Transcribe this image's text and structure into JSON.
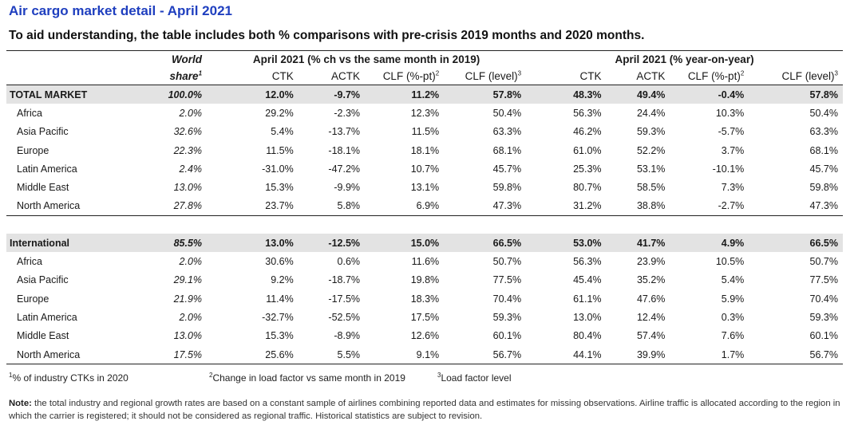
{
  "title": "Air cargo market detail - April 2021",
  "subtitle": "To aid understanding, the table includes both % comparisons with pre-crisis 2019 months and 2020 months.",
  "headers": {
    "world": "World",
    "share": "share",
    "share_sup": "1",
    "group1": "April 2021 (% ch vs the same month in 2019)",
    "group2": "April 2021 (% year-on-year)",
    "ctk": "CTK",
    "actk": "ACTK",
    "clf_pt": "CLF (%-pt)",
    "clf_pt_sup": "2",
    "clf_level": "CLF (level)",
    "clf_level_sup": "3"
  },
  "sections": [
    {
      "total": [
        "TOTAL MARKET",
        "100.0%",
        "12.0%",
        "-9.7%",
        "11.2%",
        "57.8%",
        "48.3%",
        "49.4%",
        "-0.4%",
        "57.8%"
      ],
      "rows": [
        [
          "Africa",
          "2.0%",
          "29.2%",
          "-2.3%",
          "12.3%",
          "50.4%",
          "56.3%",
          "24.4%",
          "10.3%",
          "50.4%"
        ],
        [
          "Asia Pacific",
          "32.6%",
          "5.4%",
          "-13.7%",
          "11.5%",
          "63.3%",
          "46.2%",
          "59.3%",
          "-5.7%",
          "63.3%"
        ],
        [
          "Europe",
          "22.3%",
          "11.5%",
          "-18.1%",
          "18.1%",
          "68.1%",
          "61.0%",
          "52.2%",
          "3.7%",
          "68.1%"
        ],
        [
          "Latin America",
          "2.4%",
          "-31.0%",
          "-47.2%",
          "10.7%",
          "45.7%",
          "25.3%",
          "53.1%",
          "-10.1%",
          "45.7%"
        ],
        [
          "Middle East",
          "13.0%",
          "15.3%",
          "-9.9%",
          "13.1%",
          "59.8%",
          "80.7%",
          "58.5%",
          "7.3%",
          "59.8%"
        ],
        [
          "North America",
          "27.8%",
          "23.7%",
          "5.8%",
          "6.9%",
          "47.3%",
          "31.2%",
          "38.8%",
          "-2.7%",
          "47.3%"
        ]
      ]
    },
    {
      "total": [
        "International",
        "85.5%",
        "13.0%",
        "-12.5%",
        "15.0%",
        "66.5%",
        "53.0%",
        "41.7%",
        "4.9%",
        "66.5%"
      ],
      "rows": [
        [
          "Africa",
          "2.0%",
          "30.6%",
          "0.6%",
          "11.6%",
          "50.7%",
          "56.3%",
          "23.9%",
          "10.5%",
          "50.7%"
        ],
        [
          "Asia Pacific",
          "29.1%",
          "9.2%",
          "-18.7%",
          "19.8%",
          "77.5%",
          "45.4%",
          "35.2%",
          "5.4%",
          "77.5%"
        ],
        [
          "Europe",
          "21.9%",
          "11.4%",
          "-17.5%",
          "18.3%",
          "70.4%",
          "61.1%",
          "47.6%",
          "5.9%",
          "70.4%"
        ],
        [
          "Latin America",
          "2.0%",
          "-32.7%",
          "-52.5%",
          "17.5%",
          "59.3%",
          "13.0%",
          "12.4%",
          "0.3%",
          "59.3%"
        ],
        [
          "Middle East",
          "13.0%",
          "15.3%",
          "-8.9%",
          "12.6%",
          "60.1%",
          "80.4%",
          "57.4%",
          "7.6%",
          "60.1%"
        ],
        [
          "North America",
          "17.5%",
          "25.6%",
          "5.5%",
          "9.1%",
          "56.7%",
          "44.1%",
          "39.9%",
          "1.7%",
          "56.7%"
        ]
      ]
    }
  ],
  "footnotes": {
    "f1_sup": "1",
    "f1": "% of industry CTKs in 2020",
    "f2_sup": "2",
    "f2": "Change in load factor vs same month in 2019",
    "f3_sup": "3",
    "f3": "Load factor level"
  },
  "note": {
    "label": "Note:",
    "text": "the total industry and regional growth rates are based on a constant sample of airlines combining reported data and estimates for missing observations. Airline traffic is allocated according to the region in which the carrier is registered; it should not be considered as regional traffic. Historical statistics are subject to revision."
  }
}
